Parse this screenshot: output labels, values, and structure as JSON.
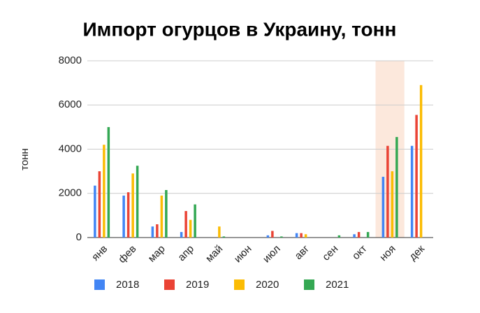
{
  "chart_data": {
    "type": "bar",
    "title": "Импорт огурцов в Украину, тонн",
    "y_label": "тонн",
    "categories": [
      "янв",
      "фев",
      "мар",
      "апр",
      "май",
      "июн",
      "июл",
      "авг",
      "сен",
      "окт",
      "ноя",
      "дек"
    ],
    "series": [
      {
        "name": "2018",
        "color": "#4285f4",
        "values": [
          2350,
          1900,
          500,
          250,
          0,
          0,
          100,
          200,
          0,
          150,
          2750,
          4150
        ]
      },
      {
        "name": "2019",
        "color": "#ea4335",
        "values": [
          3000,
          2050,
          600,
          1200,
          0,
          0,
          300,
          200,
          0,
          250,
          4150,
          5550
        ]
      },
      {
        "name": "2020",
        "color": "#fbbc04",
        "values": [
          4200,
          2900,
          1900,
          800,
          500,
          0,
          0,
          150,
          0,
          0,
          3000,
          6900
        ]
      },
      {
        "name": "2021",
        "color": "#34a853",
        "values": [
          5000,
          3250,
          2150,
          1500,
          50,
          0,
          50,
          0,
          100,
          250,
          4550,
          null
        ]
      }
    ],
    "ylim": [
      0,
      8000
    ],
    "yticks": [
      0,
      2000,
      4000,
      6000,
      8000
    ],
    "grid": true,
    "highlight_index": 10,
    "highlight_color": "#fce8dc"
  }
}
